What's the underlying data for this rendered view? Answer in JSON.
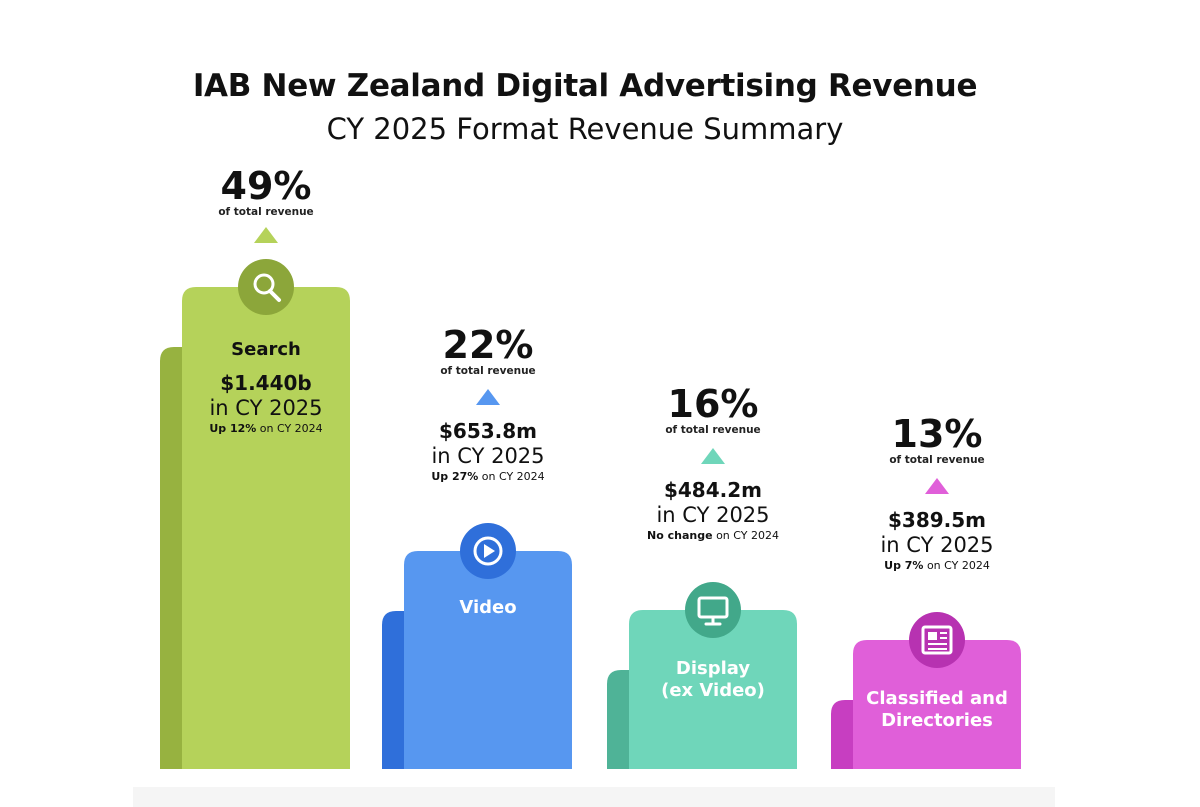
{
  "header": {
    "title": "IAB New Zealand Digital Advertising Revenue",
    "subtitle": "CY 2025 Format Revenue Summary"
  },
  "chart_data": {
    "type": "bar",
    "title": "IAB New Zealand Digital Advertising Revenue",
    "subtitle": "CY 2025 Format Revenue Summary",
    "categories": [
      "Search",
      "Video",
      "Display (ex Video)",
      "Classified and Directories"
    ],
    "values": [
      49,
      22,
      16,
      13
    ],
    "unit": "% of total revenue",
    "grid": false,
    "legend": "none",
    "series": [
      {
        "category": "Search",
        "label": "Search",
        "label_lines": [
          "Search"
        ],
        "pct": "49%",
        "pct_label": "of total revenue",
        "amount": "$1.440b",
        "period": "in CY 2025",
        "change_bold": "Up 12%",
        "change_rest": " on CY 2024",
        "icon": "search-icon",
        "color": "#b5d25a",
        "shade": "#97b240",
        "icon_bg": "#8ca63a"
      },
      {
        "category": "Video",
        "label": "Video",
        "label_lines": [
          "Video"
        ],
        "pct": "22%",
        "pct_label": "of total revenue",
        "amount": "$653.8m",
        "period": "in CY 2025",
        "change_bold": "Up 27%",
        "change_rest": " on CY 2024",
        "icon": "play-icon",
        "color": "#5797f0",
        "shade": "#2f6fda",
        "icon_bg": "#2f6fda"
      },
      {
        "category": "Display (ex Video)",
        "label": "Display (ex Video)",
        "label_lines": [
          "Display",
          "(ex Video)"
        ],
        "pct": "16%",
        "pct_label": "of total revenue",
        "amount": "$484.2m",
        "period": "in CY 2025",
        "change_bold": "No change",
        "change_rest": " on CY 2024",
        "icon": "monitor-icon",
        "color": "#6fd6ba",
        "shade": "#4fb397",
        "icon_bg": "#42a88a"
      },
      {
        "category": "Classified and Directories",
        "label": "Classified and Directories",
        "label_lines": [
          "Classified and",
          "Directories"
        ],
        "pct": "13%",
        "pct_label": "of total revenue",
        "amount": "$389.5m",
        "period": "in CY 2025",
        "change_bold": "Up 7%",
        "change_rest": " on CY 2024",
        "icon": "newspaper-icon",
        "color": "#e05fd9",
        "shade": "#c73ec1",
        "icon_bg": "#b732b1"
      }
    ]
  }
}
